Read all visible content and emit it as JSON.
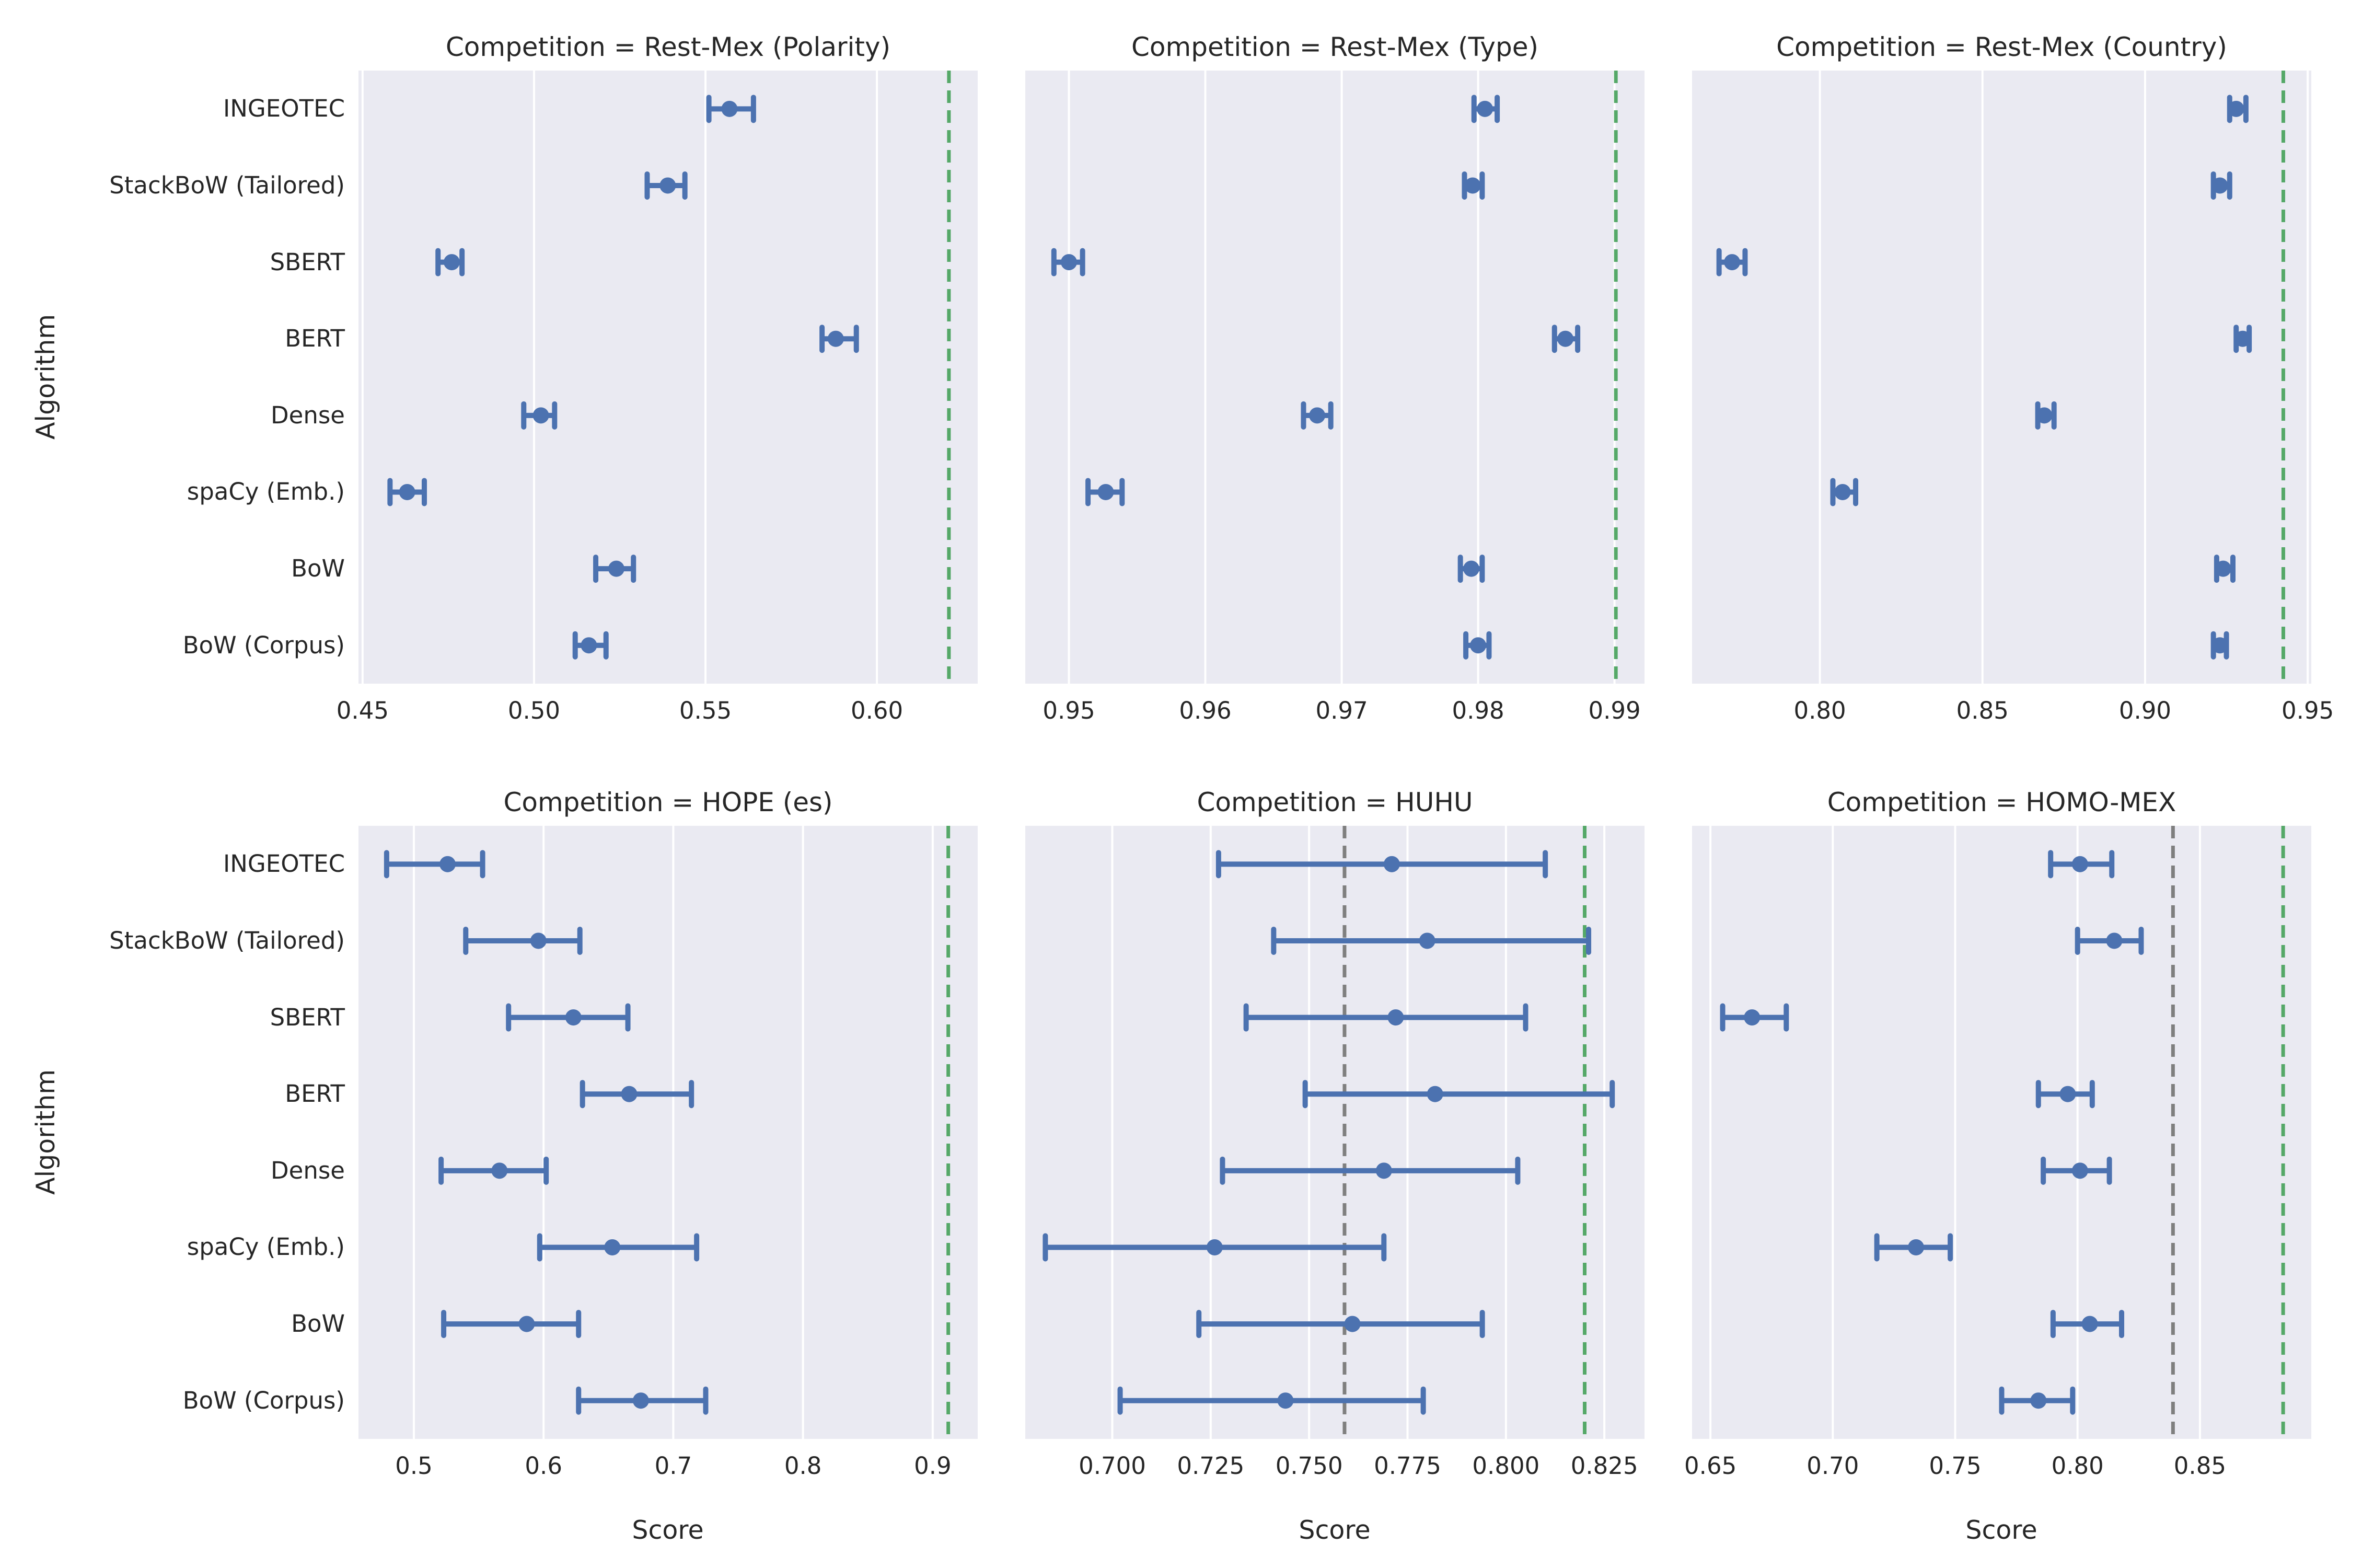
{
  "figure_title": "",
  "axis_labels": {
    "x": "Score",
    "y": "Algorithm"
  },
  "algorithms": [
    "INGEOTEC",
    "StackBoW (Tailored)",
    "SBERT",
    "BERT",
    "Dense",
    "spaCy (Emb.)",
    "BoW",
    "BoW (Corpus)"
  ],
  "palette": {
    "point_color": "#4c72b0",
    "winner_line_color": "#55a868",
    "baseline_line_color": "#7f7f7f",
    "panel_background": "#eaeaf2",
    "grid_color": "#ffffff",
    "text_color": "#262626",
    "figure_background": "#ffffff"
  },
  "chart_data": [
    {
      "type": "scatter",
      "id": "rest-mex-polarity",
      "title": "Competition = Rest-Mex (Polarity)",
      "row": 0,
      "col": 0,
      "xlim": [
        0.4488,
        0.6294
      ],
      "ticks": [
        0.45,
        0.5,
        0.55,
        0.6
      ],
      "tick_labels": [
        "0.45",
        "0.50",
        "0.55",
        "0.60"
      ],
      "reference_lines": [
        {
          "kind": "winner",
          "value": 0.621
        }
      ],
      "series": [
        {
          "algorithm": "INGEOTEC",
          "value": 0.557,
          "lo": 0.551,
          "hi": 0.564
        },
        {
          "algorithm": "StackBoW (Tailored)",
          "value": 0.539,
          "lo": 0.533,
          "hi": 0.544
        },
        {
          "algorithm": "SBERT",
          "value": 0.476,
          "lo": 0.472,
          "hi": 0.479
        },
        {
          "algorithm": "BERT",
          "value": 0.588,
          "lo": 0.584,
          "hi": 0.594
        },
        {
          "algorithm": "Dense",
          "value": 0.502,
          "lo": 0.497,
          "hi": 0.506
        },
        {
          "algorithm": "spaCy (Emb.)",
          "value": 0.463,
          "lo": 0.458,
          "hi": 0.468
        },
        {
          "algorithm": "BoW",
          "value": 0.524,
          "lo": 0.518,
          "hi": 0.529
        },
        {
          "algorithm": "BoW (Corpus)",
          "value": 0.516,
          "lo": 0.512,
          "hi": 0.521
        }
      ]
    },
    {
      "type": "scatter",
      "id": "rest-mex-type",
      "title": "Competition = Rest-Mex (Type)",
      "row": 0,
      "col": 1,
      "xlim": [
        0.9468,
        0.9922
      ],
      "ticks": [
        0.95,
        0.96,
        0.97,
        0.98,
        0.99
      ],
      "tick_labels": [
        "0.95",
        "0.96",
        "0.97",
        "0.98",
        "0.99"
      ],
      "reference_lines": [
        {
          "kind": "winner",
          "value": 0.9901
        }
      ],
      "series": [
        {
          "algorithm": "INGEOTEC",
          "value": 0.9805,
          "lo": 0.9797,
          "hi": 0.9814
        },
        {
          "algorithm": "StackBoW (Tailored)",
          "value": 0.9796,
          "lo": 0.979,
          "hi": 0.9803
        },
        {
          "algorithm": "SBERT",
          "value": 0.95,
          "lo": 0.9489,
          "hi": 0.951
        },
        {
          "algorithm": "BERT",
          "value": 0.9864,
          "lo": 0.9856,
          "hi": 0.9873
        },
        {
          "algorithm": "Dense",
          "value": 0.9682,
          "lo": 0.9672,
          "hi": 0.9692
        },
        {
          "algorithm": "spaCy (Emb.)",
          "value": 0.9527,
          "lo": 0.9514,
          "hi": 0.9539
        },
        {
          "algorithm": "BoW",
          "value": 0.9795,
          "lo": 0.9787,
          "hi": 0.9803
        },
        {
          "algorithm": "BoW (Corpus)",
          "value": 0.98,
          "lo": 0.9791,
          "hi": 0.9808
        }
      ]
    },
    {
      "type": "scatter",
      "id": "rest-mex-country",
      "title": "Competition = Rest-Mex (Country)",
      "row": 0,
      "col": 2,
      "xlim": [
        0.7607,
        0.9511
      ],
      "ticks": [
        0.8,
        0.85,
        0.9,
        0.95
      ],
      "tick_labels": [
        "0.80",
        "0.85",
        "0.90",
        "0.95"
      ],
      "reference_lines": [
        {
          "kind": "winner",
          "value": 0.9425
        }
      ],
      "series": [
        {
          "algorithm": "INGEOTEC",
          "value": 0.928,
          "lo": 0.926,
          "hi": 0.931
        },
        {
          "algorithm": "StackBoW (Tailored)",
          "value": 0.923,
          "lo": 0.921,
          "hi": 0.926
        },
        {
          "algorithm": "SBERT",
          "value": 0.773,
          "lo": 0.769,
          "hi": 0.777
        },
        {
          "algorithm": "BERT",
          "value": 0.93,
          "lo": 0.928,
          "hi": 0.932
        },
        {
          "algorithm": "Dense",
          "value": 0.869,
          "lo": 0.867,
          "hi": 0.872
        },
        {
          "algorithm": "spaCy (Emb.)",
          "value": 0.807,
          "lo": 0.804,
          "hi": 0.811
        },
        {
          "algorithm": "BoW",
          "value": 0.924,
          "lo": 0.922,
          "hi": 0.927
        },
        {
          "algorithm": "BoW (Corpus)",
          "value": 0.923,
          "lo": 0.921,
          "hi": 0.925
        }
      ]
    },
    {
      "type": "scatter",
      "id": "hope-es",
      "title": "Competition = HOPE (es)",
      "row": 1,
      "col": 0,
      "xlim": [
        0.4573,
        0.9347
      ],
      "ticks": [
        0.5,
        0.6,
        0.7,
        0.8,
        0.9
      ],
      "tick_labels": [
        "0.5",
        "0.6",
        "0.7",
        "0.8",
        "0.9"
      ],
      "reference_lines": [
        {
          "kind": "winner",
          "value": 0.912
        }
      ],
      "series": [
        {
          "algorithm": "INGEOTEC",
          "value": 0.526,
          "lo": 0.479,
          "hi": 0.553
        },
        {
          "algorithm": "StackBoW (Tailored)",
          "value": 0.596,
          "lo": 0.54,
          "hi": 0.628
        },
        {
          "algorithm": "SBERT",
          "value": 0.623,
          "lo": 0.573,
          "hi": 0.665
        },
        {
          "algorithm": "BERT",
          "value": 0.666,
          "lo": 0.63,
          "hi": 0.714
        },
        {
          "algorithm": "Dense",
          "value": 0.566,
          "lo": 0.521,
          "hi": 0.602
        },
        {
          "algorithm": "spaCy (Emb.)",
          "value": 0.653,
          "lo": 0.597,
          "hi": 0.718
        },
        {
          "algorithm": "BoW",
          "value": 0.587,
          "lo": 0.523,
          "hi": 0.627
        },
        {
          "algorithm": "BoW (Corpus)",
          "value": 0.675,
          "lo": 0.627,
          "hi": 0.725
        }
      ]
    },
    {
      "type": "scatter",
      "id": "huhu",
      "title": "Competition = HUHU",
      "row": 1,
      "col": 1,
      "xlim": [
        0.6779,
        0.8352
      ],
      "ticks": [
        0.7,
        0.725,
        0.75,
        0.775,
        0.8,
        0.825
      ],
      "tick_labels": [
        "0.700",
        "0.725",
        "0.750",
        "0.775",
        "0.800",
        "0.825"
      ],
      "reference_lines": [
        {
          "kind": "baseline",
          "value": 0.759
        },
        {
          "kind": "winner",
          "value": 0.82
        }
      ],
      "series": [
        {
          "algorithm": "INGEOTEC",
          "value": 0.771,
          "lo": 0.727,
          "hi": 0.81
        },
        {
          "algorithm": "StackBoW (Tailored)",
          "value": 0.78,
          "lo": 0.741,
          "hi": 0.821
        },
        {
          "algorithm": "SBERT",
          "value": 0.772,
          "lo": 0.734,
          "hi": 0.805
        },
        {
          "algorithm": "BERT",
          "value": 0.782,
          "lo": 0.749,
          "hi": 0.827
        },
        {
          "algorithm": "Dense",
          "value": 0.769,
          "lo": 0.728,
          "hi": 0.803
        },
        {
          "algorithm": "spaCy (Emb.)",
          "value": 0.726,
          "lo": 0.683,
          "hi": 0.769
        },
        {
          "algorithm": "BoW",
          "value": 0.761,
          "lo": 0.722,
          "hi": 0.794
        },
        {
          "algorithm": "BoW (Corpus)",
          "value": 0.744,
          "lo": 0.702,
          "hi": 0.779
        }
      ]
    },
    {
      "type": "scatter",
      "id": "homo-mex",
      "title": "Competition = HOMO-MEX",
      "row": 1,
      "col": 2,
      "xlim": [
        0.6425,
        0.8955
      ],
      "ticks": [
        0.65,
        0.7,
        0.75,
        0.8,
        0.85
      ],
      "tick_labels": [
        "0.65",
        "0.70",
        "0.75",
        "0.80",
        "0.85"
      ],
      "reference_lines": [
        {
          "kind": "baseline",
          "value": 0.839
        },
        {
          "kind": "winner",
          "value": 0.884
        }
      ],
      "series": [
        {
          "algorithm": "INGEOTEC",
          "value": 0.801,
          "lo": 0.789,
          "hi": 0.814
        },
        {
          "algorithm": "StackBoW (Tailored)",
          "value": 0.815,
          "lo": 0.8,
          "hi": 0.826
        },
        {
          "algorithm": "SBERT",
          "value": 0.667,
          "lo": 0.655,
          "hi": 0.681
        },
        {
          "algorithm": "BERT",
          "value": 0.796,
          "lo": 0.784,
          "hi": 0.806
        },
        {
          "algorithm": "Dense",
          "value": 0.801,
          "lo": 0.786,
          "hi": 0.813
        },
        {
          "algorithm": "spaCy (Emb.)",
          "value": 0.734,
          "lo": 0.718,
          "hi": 0.748
        },
        {
          "algorithm": "BoW",
          "value": 0.805,
          "lo": 0.79,
          "hi": 0.818
        },
        {
          "algorithm": "BoW (Corpus)",
          "value": 0.784,
          "lo": 0.769,
          "hi": 0.798
        }
      ]
    }
  ]
}
